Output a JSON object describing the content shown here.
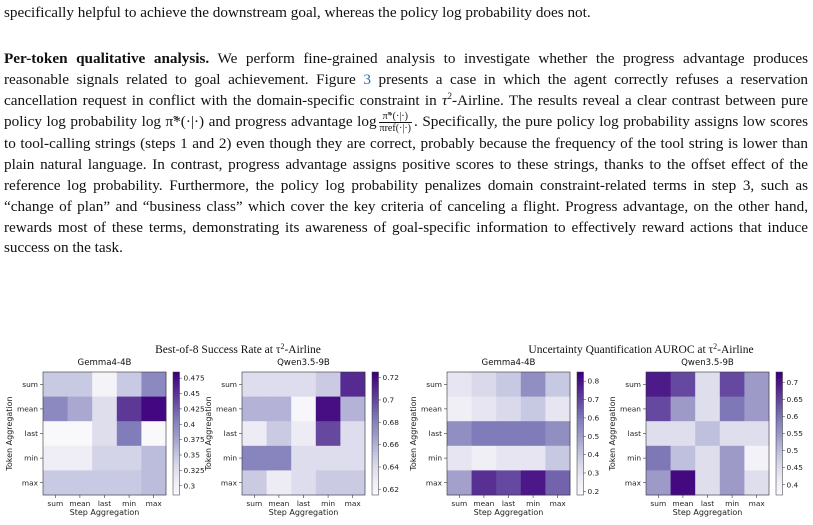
{
  "para1_tail": "specifically helpful to achieve the downstream goal, whereas the policy log probability does not.",
  "para2": {
    "heading": "Per-token qualitative analysis.",
    "s1": "We perform fine-grained analysis to investigate whether the progress advantage produces reasonable signals related to goal achievement. Figure",
    "fig_ref": "3",
    "s2": "presents a case in which the agent correctly refuses a reservation cancellation request in conflict with the domain-specific constraint in",
    "tau_domain": "-Airline. The results reveal a clear contrast between pure policy log probability",
    "policy_expr": "log π̃*(·|·)",
    "and_text": "and progress advantage",
    "adv_log": "log",
    "adv_num": "π̃*(·|·)",
    "adv_den": "πref(·|·)",
    "s3": ". Specifically, the pure policy log probability assigns low scores to tool-calling strings (steps 1 and 2) even though they are correct, probably because the frequency of the tool string is lower than plain natural language. In contrast, progress advantage assigns positive scores to these strings, thanks to the offset effect of the reference log probability. Furthermore, the policy log probability penalizes domain constraint-related terms in step 3, such as “change of plan” and “business class” which cover the key criteria of canceling a flight. Progress advantage, on the other hand, rewards most of these terms, demonstrating its awareness of goal-specific information to effectively reward actions that induce success on the task."
  },
  "chart_data": [
    {
      "type": "heatmap",
      "figure_title": "Best-of-8 Success Rate at τ²-Airline",
      "title": "Gemma4-4B",
      "xlabel": "Step Aggregation",
      "ylabel": "Token Aggregation",
      "x_categories": [
        "sum",
        "mean",
        "last",
        "min",
        "max"
      ],
      "y_categories": [
        "sum",
        "mean",
        "last",
        "min",
        "max"
      ],
      "values": [
        [
          0.35,
          0.35,
          0.3,
          0.35,
          0.4
        ],
        [
          0.4,
          0.375,
          0.33,
          0.45,
          0.48
        ],
        [
          0.29,
          0.29,
          0.33,
          0.41,
          0.29
        ],
        [
          0.31,
          0.31,
          0.34,
          0.34,
          0.36
        ],
        [
          0.35,
          0.35,
          0.35,
          0.35,
          0.36
        ]
      ],
      "colorbar_ticks": [
        0.475,
        0.45,
        0.425,
        0.4,
        0.375,
        0.35,
        0.325,
        0.3
      ],
      "vmin": 0.285,
      "vmax": 0.485
    },
    {
      "type": "heatmap",
      "figure_title": "Best-of-8 Success Rate at τ²-Airline",
      "title": "Qwen3.5-9B",
      "xlabel": "Step Aggregation",
      "ylabel": "Token Aggregation",
      "x_categories": [
        "sum",
        "mean",
        "last",
        "min",
        "max"
      ],
      "y_categories": [
        "sum",
        "mean",
        "last",
        "min",
        "max"
      ],
      "values": [
        [
          0.64,
          0.64,
          0.64,
          0.65,
          0.71
        ],
        [
          0.66,
          0.66,
          0.62,
          0.72,
          0.66
        ],
        [
          0.63,
          0.65,
          0.63,
          0.7,
          0.64
        ],
        [
          0.68,
          0.68,
          0.64,
          0.64,
          0.64
        ],
        [
          0.65,
          0.63,
          0.64,
          0.65,
          0.65
        ]
      ],
      "colorbar_ticks": [
        0.72,
        0.7,
        0.68,
        0.66,
        0.64,
        0.62
      ],
      "vmin": 0.615,
      "vmax": 0.725
    },
    {
      "type": "heatmap",
      "figure_title": "Uncertainty Quantification AUROC at τ²-Airline",
      "title": "Gemma4-4B",
      "xlabel": "Step Aggregation",
      "ylabel": "Token Aggregation",
      "x_categories": [
        "sum",
        "mean",
        "last",
        "min",
        "max"
      ],
      "y_categories": [
        "sum",
        "mean",
        "last",
        "min",
        "max"
      ],
      "values": [
        [
          0.3,
          0.35,
          0.4,
          0.55,
          0.4
        ],
        [
          0.25,
          0.3,
          0.35,
          0.4,
          0.3
        ],
        [
          0.55,
          0.6,
          0.6,
          0.6,
          0.55
        ],
        [
          0.3,
          0.25,
          0.3,
          0.3,
          0.4
        ],
        [
          0.5,
          0.75,
          0.7,
          0.8,
          0.65
        ]
      ],
      "colorbar_ticks": [
        0.8,
        0.7,
        0.6,
        0.5,
        0.4,
        0.3,
        0.2
      ],
      "vmin": 0.18,
      "vmax": 0.85
    },
    {
      "type": "heatmap",
      "figure_title": "Uncertainty Quantification AUROC at τ²-Airline",
      "title": "Qwen3.5-9B",
      "xlabel": "Step Aggregation",
      "ylabel": "Token Aggregation",
      "x_categories": [
        "sum",
        "mean",
        "last",
        "min",
        "max"
      ],
      "y_categories": [
        "sum",
        "mean",
        "last",
        "min",
        "max"
      ],
      "values": [
        [
          0.7,
          0.65,
          0.45,
          0.65,
          0.55
        ],
        [
          0.65,
          0.55,
          0.45,
          0.6,
          0.55
        ],
        [
          0.45,
          0.45,
          0.5,
          0.45,
          0.45
        ],
        [
          0.6,
          0.5,
          0.45,
          0.55,
          0.4
        ],
        [
          0.55,
          0.72,
          0.45,
          0.55,
          0.45
        ]
      ],
      "colorbar_ticks": [
        0.7,
        0.65,
        0.6,
        0.55,
        0.5,
        0.45,
        0.4
      ],
      "vmin": 0.37,
      "vmax": 0.73
    }
  ]
}
